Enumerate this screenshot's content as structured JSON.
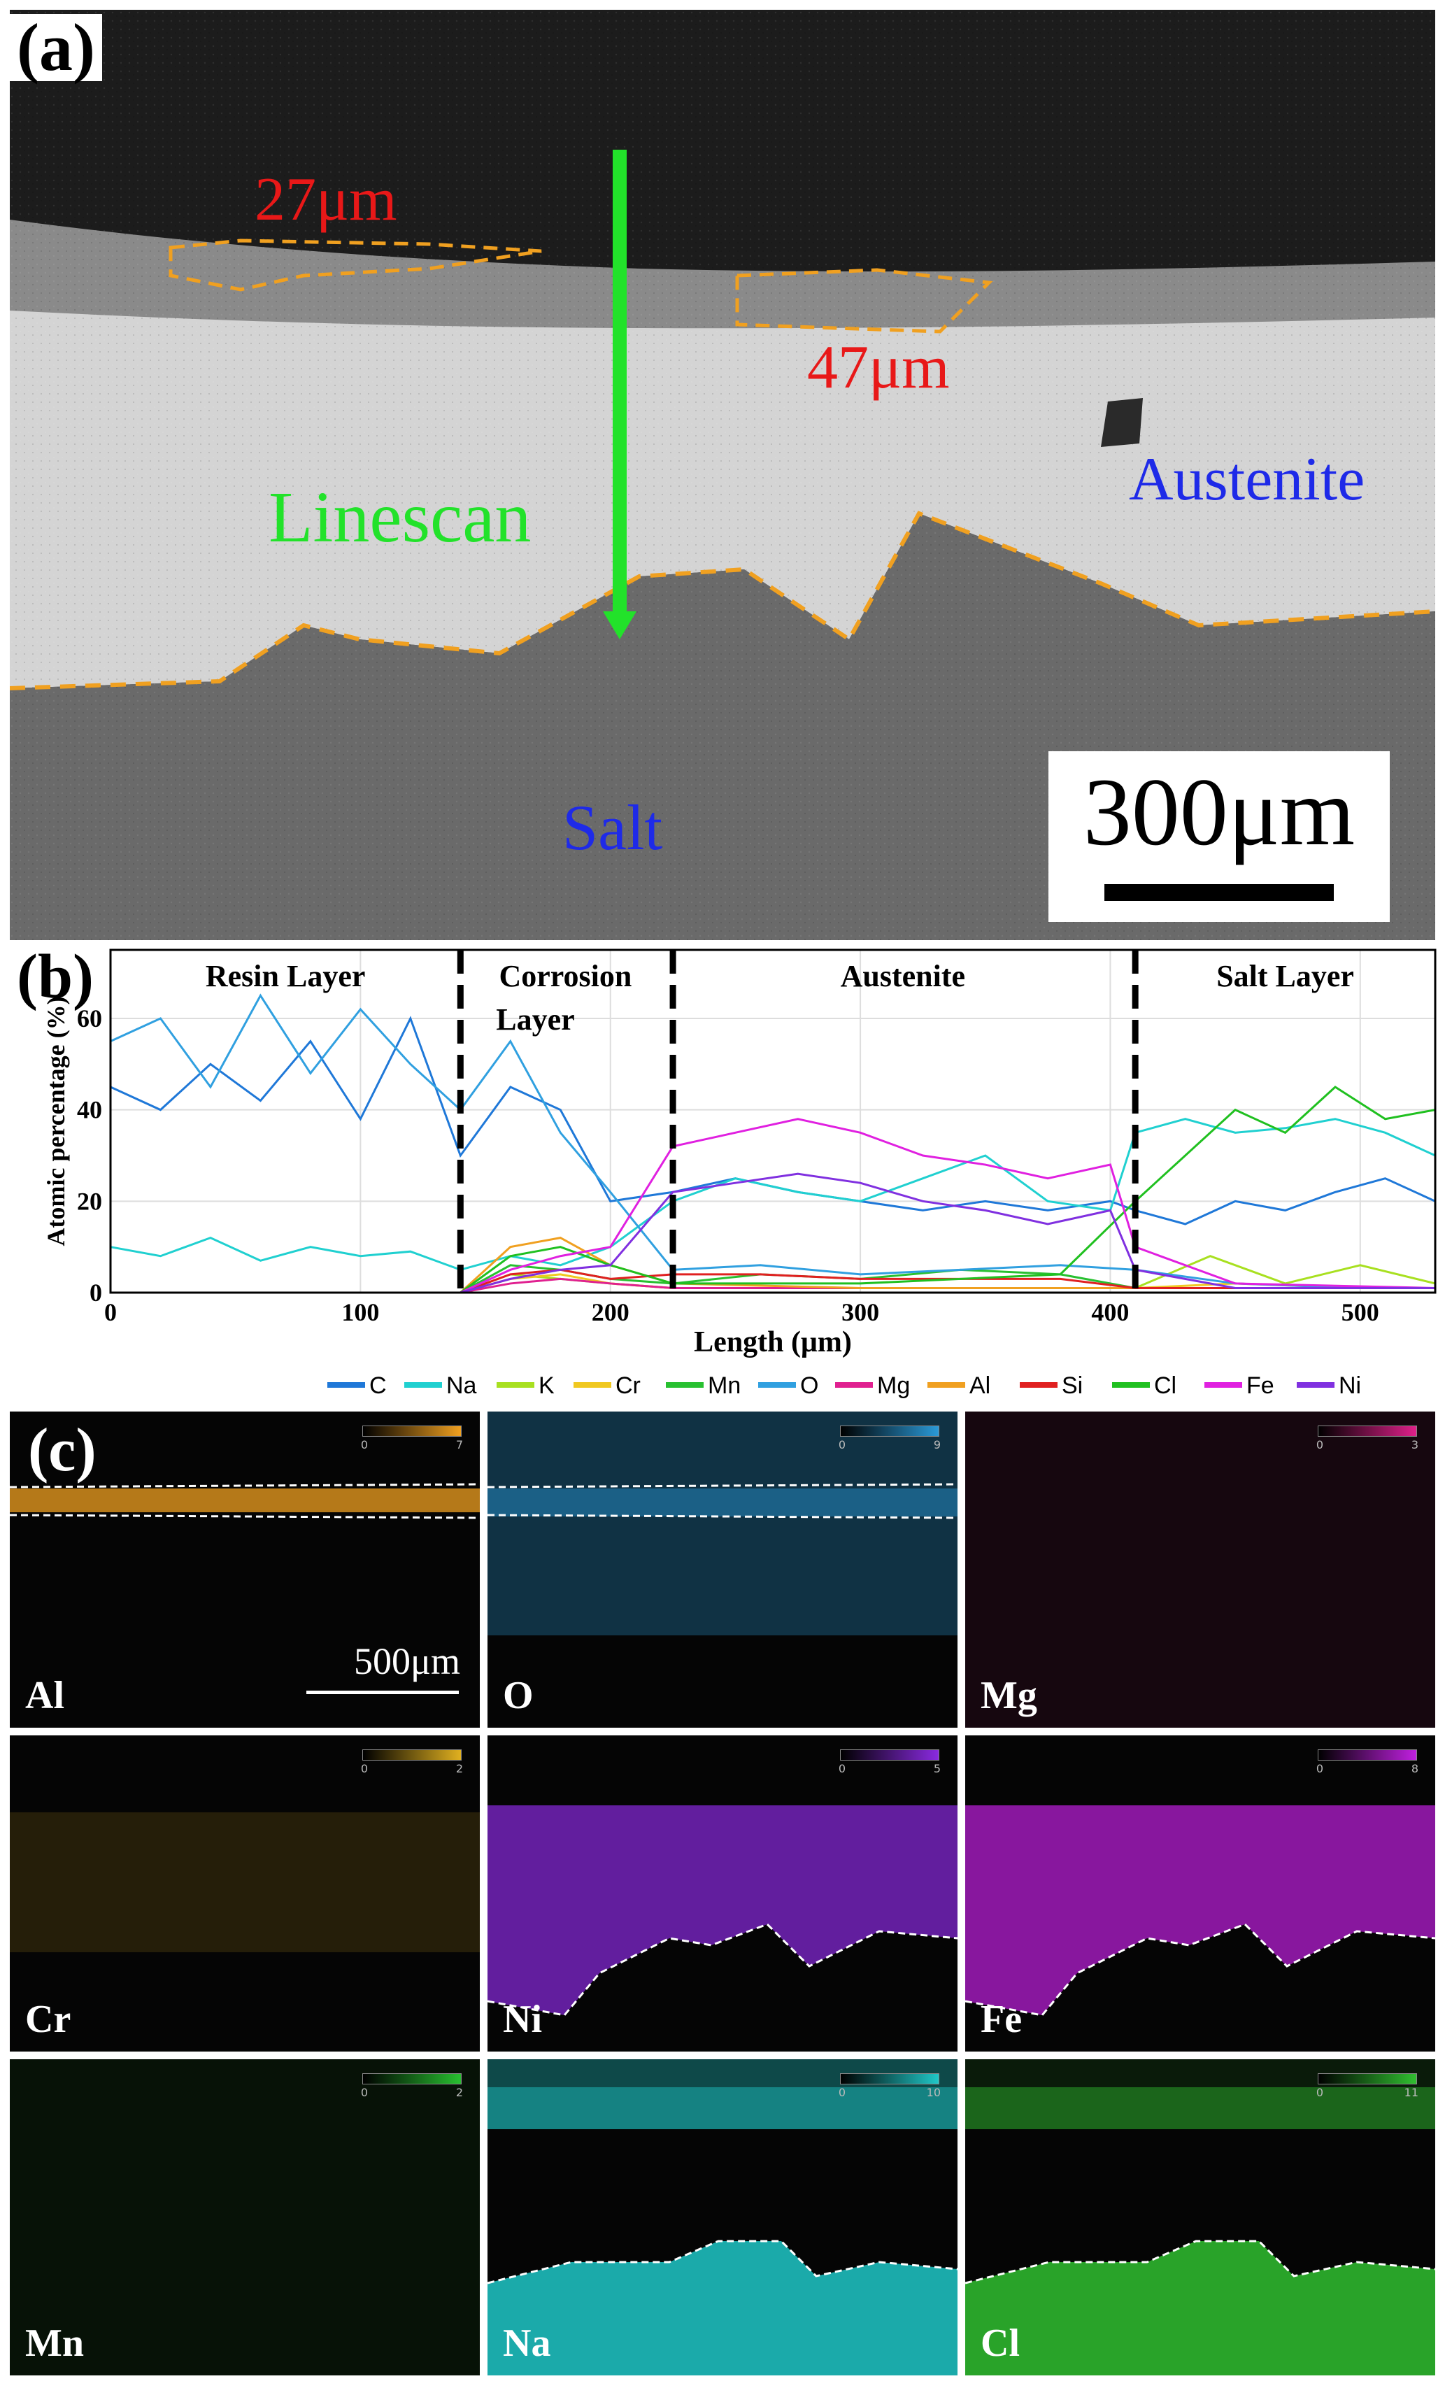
{
  "panel_a": {
    "label": "(a)",
    "thickness_1": "27μm",
    "thickness_2": "47μm",
    "linescan_label": "Linescan",
    "region_austenite": "Austenite",
    "region_salt": "Salt",
    "scale_bar": "300μm"
  },
  "panel_b": {
    "label": "(b)"
  },
  "panel_c": {
    "label": "(c)",
    "scale_bar": "500μm",
    "maps": [
      {
        "element": "Al",
        "cb_min": "0",
        "cb_max": "7",
        "color": "#f0a020"
      },
      {
        "element": "O",
        "cb_min": "0",
        "cb_max": "9",
        "color": "#2a9ad8"
      },
      {
        "element": "Mg",
        "cb_min": "0",
        "cb_max": "3",
        "color": "#e0208a"
      },
      {
        "element": "Cr",
        "cb_min": "0",
        "cb_max": "2",
        "color": "#e0b020"
      },
      {
        "element": "Ni",
        "cb_min": "0",
        "cb_max": "5",
        "color": "#8a2ae0"
      },
      {
        "element": "Fe",
        "cb_min": "0",
        "cb_max": "8",
        "color": "#c020e0"
      },
      {
        "element": "Mn",
        "cb_min": "0",
        "cb_max": "2",
        "color": "#28c030"
      },
      {
        "element": "Na",
        "cb_min": "0",
        "cb_max": "10",
        "color": "#20c8c8"
      },
      {
        "element": "Cl",
        "cb_min": "0",
        "cb_max": "11",
        "color": "#30c030"
      }
    ]
  },
  "chart_data": {
    "type": "line",
    "title": "",
    "xlabel": "Length (μm)",
    "ylabel": "Atomic percentage (%)",
    "xlim": [
      0,
      530
    ],
    "ylim": [
      0,
      75
    ],
    "xticks": [
      0,
      100,
      200,
      300,
      400,
      500
    ],
    "yticks": [
      0,
      20,
      40,
      60
    ],
    "regions": [
      {
        "label": "Resin Layer",
        "start": 0,
        "end": 140
      },
      {
        "label": "Corrosion Layer",
        "start": 140,
        "end": 225
      },
      {
        "label": "Austenite",
        "start": 225,
        "end": 410
      },
      {
        "label": "Salt Layer",
        "start": 410,
        "end": 530
      }
    ],
    "boundaries": [
      140,
      225,
      410
    ],
    "legend": [
      "C",
      "Na",
      "K",
      "Cr",
      "Mn",
      "O",
      "Mg",
      "Al",
      "Si",
      "Cl",
      "Fe",
      "Ni"
    ],
    "colors": {
      "C": "#1f78d8",
      "Na": "#20d0d0",
      "K": "#a8e020",
      "Cr": "#f0c820",
      "Mn": "#28c030",
      "O": "#30a0e0",
      "Mg": "#e02090",
      "Al": "#f0a020",
      "Si": "#e02020",
      "Cl": "#20c020",
      "Fe": "#e020e0",
      "Ni": "#8030e0"
    },
    "series": [
      {
        "name": "C",
        "x": [
          0,
          20,
          40,
          60,
          80,
          100,
          120,
          140,
          160,
          180,
          200,
          225,
          250,
          275,
          300,
          325,
          350,
          375,
          400,
          410,
          430,
          450,
          470,
          490,
          510,
          530
        ],
        "values": [
          45,
          40,
          50,
          42,
          55,
          38,
          60,
          30,
          45,
          40,
          20,
          22,
          25,
          22,
          20,
          18,
          20,
          18,
          20,
          18,
          15,
          20,
          18,
          22,
          25,
          20
        ]
      },
      {
        "name": "Na",
        "x": [
          0,
          20,
          40,
          60,
          80,
          100,
          120,
          140,
          160,
          180,
          200,
          225,
          250,
          275,
          300,
          325,
          350,
          375,
          400,
          410,
          430,
          450,
          470,
          490,
          510,
          530
        ],
        "values": [
          10,
          8,
          12,
          7,
          10,
          8,
          9,
          5,
          8,
          6,
          10,
          20,
          25,
          22,
          20,
          25,
          30,
          20,
          18,
          35,
          38,
          35,
          36,
          38,
          35,
          30
        ]
      },
      {
        "name": "K",
        "x": [
          0,
          140,
          160,
          180,
          200,
          225,
          300,
          410,
          440,
          470,
          500,
          530
        ],
        "values": [
          0,
          0,
          4,
          3,
          2,
          1,
          1,
          1,
          8,
          2,
          6,
          2
        ]
      },
      {
        "name": "Cr",
        "x": [
          0,
          140,
          160,
          180,
          200,
          225,
          300,
          410,
          450,
          500,
          530
        ],
        "values": [
          0,
          0,
          3,
          4,
          2,
          1,
          1,
          1,
          2,
          1,
          1
        ]
      },
      {
        "name": "Mn",
        "x": [
          0,
          140,
          160,
          180,
          200,
          225,
          260,
          300,
          340,
          380,
          410,
          450,
          500,
          530
        ],
        "values": [
          0,
          0,
          6,
          5,
          3,
          2,
          4,
          3,
          5,
          4,
          1,
          1,
          1,
          1
        ]
      },
      {
        "name": "O",
        "x": [
          0,
          20,
          40,
          60,
          80,
          100,
          120,
          140,
          160,
          180,
          200,
          225,
          260,
          300,
          340,
          380,
          410,
          450,
          500,
          530
        ],
        "values": [
          55,
          60,
          45,
          65,
          48,
          62,
          50,
          40,
          55,
          35,
          22,
          5,
          6,
          4,
          5,
          6,
          5,
          2,
          1,
          1
        ]
      },
      {
        "name": "Mg",
        "x": [
          0,
          140,
          160,
          180,
          200,
          225,
          300,
          410,
          450,
          530
        ],
        "values": [
          0,
          0,
          2,
          3,
          2,
          1,
          1,
          1,
          1,
          1
        ]
      },
      {
        "name": "Al",
        "x": [
          0,
          140,
          160,
          180,
          200,
          225,
          300,
          410,
          450,
          530
        ],
        "values": [
          0,
          0,
          10,
          12,
          6,
          2,
          1,
          1,
          1,
          1
        ]
      },
      {
        "name": "Si",
        "x": [
          0,
          140,
          160,
          180,
          200,
          225,
          260,
          300,
          340,
          380,
          410,
          450,
          530
        ],
        "values": [
          0,
          0,
          4,
          5,
          3,
          4,
          4,
          3,
          3,
          3,
          1,
          1,
          1
        ]
      },
      {
        "name": "Cl",
        "x": [
          0,
          140,
          160,
          180,
          200,
          225,
          300,
          380,
          410,
          430,
          450,
          470,
          490,
          510,
          530
        ],
        "values": [
          0,
          0,
          8,
          10,
          6,
          2,
          2,
          4,
          20,
          30,
          40,
          35,
          45,
          38,
          40
        ]
      },
      {
        "name": "Fe",
        "x": [
          0,
          140,
          160,
          180,
          200,
          225,
          250,
          275,
          300,
          325,
          350,
          375,
          400,
          410,
          450,
          530
        ],
        "values": [
          0,
          0,
          5,
          8,
          10,
          32,
          35,
          38,
          35,
          30,
          28,
          25,
          28,
          10,
          2,
          1
        ]
      },
      {
        "name": "Ni",
        "x": [
          0,
          140,
          160,
          180,
          200,
          225,
          250,
          275,
          300,
          325,
          350,
          375,
          400,
          410,
          450,
          530
        ],
        "values": [
          0,
          0,
          3,
          5,
          6,
          22,
          24,
          26,
          24,
          20,
          18,
          15,
          18,
          5,
          1,
          1
        ]
      }
    ]
  }
}
